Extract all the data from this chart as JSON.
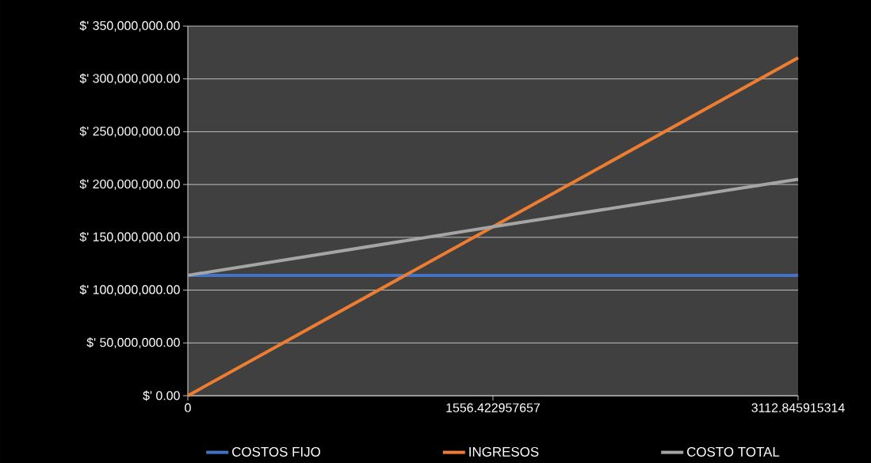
{
  "chart_data": {
    "type": "line",
    "categories": [
      "0",
      "1556.422957657",
      "3112.845915314"
    ],
    "series": [
      {
        "name": "COSTOS FIJO",
        "color": "#4472c4",
        "values": [
          114000000,
          114000000,
          114000000
        ]
      },
      {
        "name": "INGRESOS",
        "color": "#ed7d31",
        "values": [
          0,
          160000000,
          320000000
        ]
      },
      {
        "name": "COSTO TOTAL",
        "color": "#a5a5a5",
        "values": [
          114000000,
          160000000,
          205000000
        ]
      }
    ],
    "ylim": [
      0,
      350000000
    ],
    "yticks": [
      {
        "value": 0,
        "label": "$' 0.00"
      },
      {
        "value": 50000000,
        "label": "$' 50,000,000.00"
      },
      {
        "value": 100000000,
        "label": "$' 100,000,000.00"
      },
      {
        "value": 150000000,
        "label": "$' 150,000,000.00"
      },
      {
        "value": 200000000,
        "label": "$' 200,000,000.00"
      },
      {
        "value": 250000000,
        "label": "$' 250,000,000.00"
      },
      {
        "value": 300000000,
        "label": "$' 300,000,000.00"
      },
      {
        "value": 350000000,
        "label": "$' 350,000,000.00"
      }
    ],
    "grid": "y",
    "legend": "bottom",
    "marker": "none",
    "line_style": "solid"
  }
}
